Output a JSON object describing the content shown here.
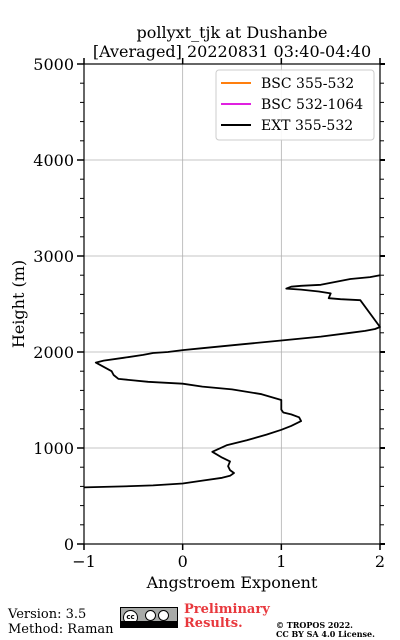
{
  "chart_data": {
    "type": "line",
    "title": "pollyxt_tjk at Dushanbe",
    "subtitle": "[Averaged] 20220831 03:40-04:40",
    "xlabel": "Angstroem Exponent",
    "ylabel": "Height (m)",
    "xlim": [
      -1,
      2
    ],
    "ylim": [
      0,
      5000
    ],
    "x_ticks": [
      -1,
      0,
      1,
      2
    ],
    "x_tick_labels": [
      "−1",
      "0",
      "1",
      "2"
    ],
    "y_ticks": [
      0,
      1000,
      2000,
      3000,
      4000,
      5000
    ],
    "y_tick_labels": [
      "0",
      "1000",
      "2000",
      "3000",
      "4000",
      "5000"
    ],
    "grid": true,
    "legend_position": "top-right",
    "series": [
      {
        "name": "BSC 355-532",
        "color": "#ff7f0e",
        "x": [],
        "y": []
      },
      {
        "name": "BSC 532-1064",
        "color": "#e020e0",
        "x": [],
        "y": []
      },
      {
        "name": "EXT 355-532",
        "color": "#000000",
        "x": [
          -1.0,
          -0.6,
          -0.3,
          0.0,
          0.2,
          0.4,
          0.48,
          0.52,
          0.48,
          0.46,
          0.48,
          0.4,
          0.3,
          0.45,
          0.65,
          0.85,
          1.0,
          1.1,
          1.2,
          1.18,
          1.1,
          1.02,
          1.0,
          1.0,
          0.8,
          0.5,
          0.2,
          0.0,
          -0.35,
          -0.65,
          -0.7,
          -0.72,
          -0.88,
          -0.8,
          -0.6,
          -0.4,
          -0.3,
          -0.15,
          0.0,
          0.2,
          0.6,
          1.0,
          1.4,
          1.7,
          1.85,
          1.95,
          2.0,
          1.8,
          1.6,
          1.48,
          1.5,
          1.38,
          1.2,
          1.05,
          1.1,
          1.2,
          1.4,
          1.55,
          1.7,
          1.9,
          2.0
        ],
        "y": [
          590,
          600,
          610,
          630,
          660,
          690,
          710,
          740,
          770,
          810,
          860,
          900,
          960,
          1030,
          1080,
          1140,
          1190,
          1230,
          1280,
          1320,
          1350,
          1370,
          1400,
          1500,
          1560,
          1610,
          1640,
          1670,
          1690,
          1720,
          1760,
          1800,
          1890,
          1910,
          1940,
          1970,
          1990,
          2000,
          2020,
          2040,
          2080,
          2120,
          2160,
          2200,
          2220,
          2240,
          2260,
          2540,
          2550,
          2560,
          2610,
          2630,
          2650,
          2660,
          2680,
          2690,
          2700,
          2730,
          2760,
          2780,
          2800
        ]
      }
    ]
  },
  "footer": {
    "version": "Version: 3.5",
    "method": "Method: Raman",
    "preliminary": "Preliminary\nResults.",
    "copyright": "© TROPOS 2022.\nCC BY SA 4.0 License.",
    "cc_logo_text": "cc"
  }
}
